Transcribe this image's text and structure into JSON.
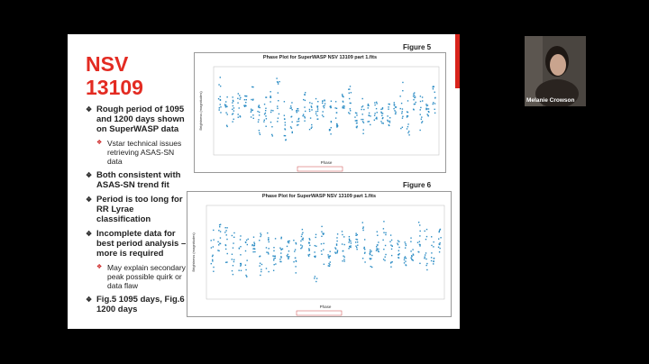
{
  "slide": {
    "title_lines": [
      "NSV",
      "13109"
    ],
    "bullets": [
      {
        "text": "Rough period of 1095 and 1200 days shown on SuperWASP data",
        "sub": [
          "Vstar technical issues retrieving ASAS-SN data"
        ]
      },
      {
        "text": "Both consistent with ASAS-SN trend fit",
        "sub": []
      },
      {
        "text": "Period is too long for RR Lyrae classification",
        "sub": []
      },
      {
        "text": "Incomplete data for best period analysis – more is required",
        "sub": [
          "May explain secondary peak possible quirk or data flaw"
        ]
      },
      {
        "text": "Fig.5 1095 days, Fig.6 1200 days",
        "sub": []
      }
    ],
    "figures": [
      {
        "label": "Figure 5",
        "title": "Phase Plot for SuperWASP NSV 13109 part 1.fits",
        "x_label": "Phase",
        "y_label": "Brightness (magnitudes)"
      },
      {
        "label": "Figure 6",
        "title": "Phase Plot for SuperWASP NSV 13109 part 1.fits",
        "x_label": "Phase",
        "y_label": "Brightness (magnitudes)"
      }
    ]
  },
  "participant": {
    "name": "Melanie Crowson"
  }
}
